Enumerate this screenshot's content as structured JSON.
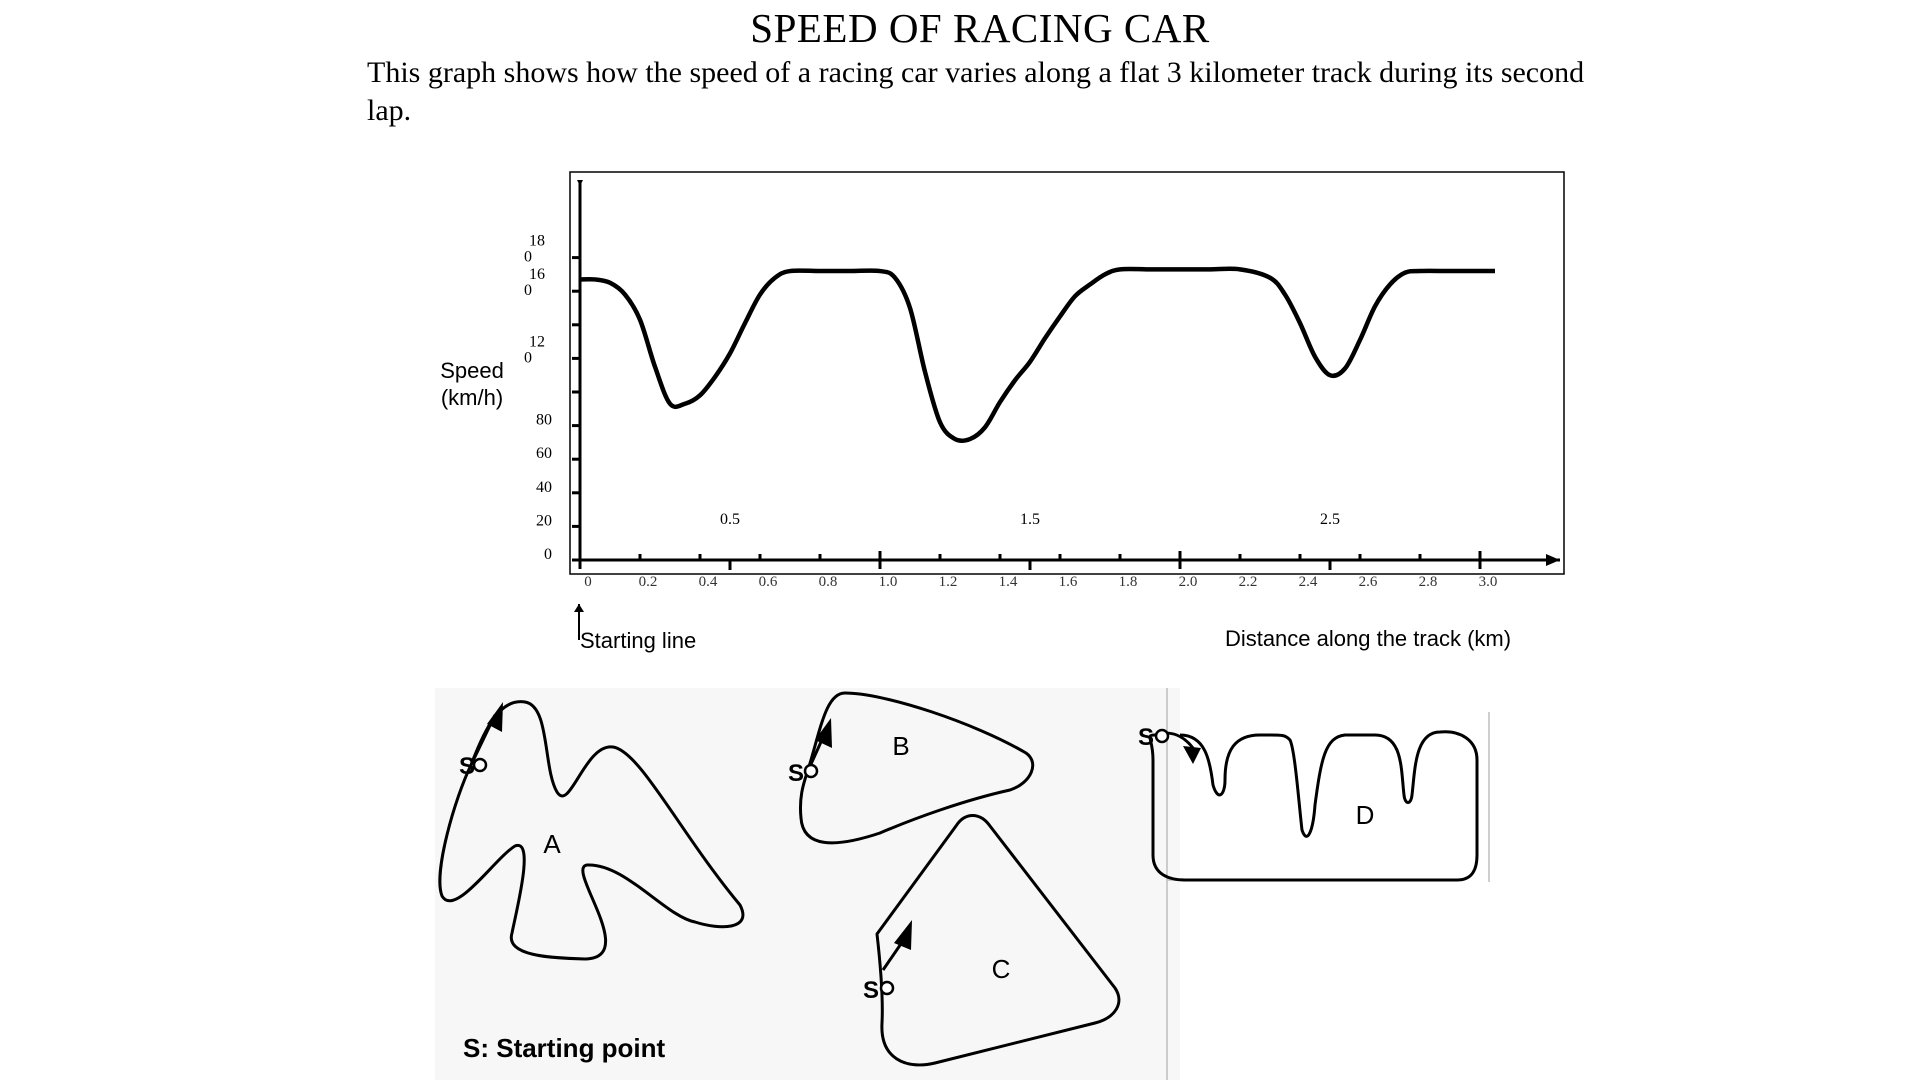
{
  "page": {
    "title": "SPEED OF RACING CAR",
    "intro": "This graph shows how the speed of a racing car varies along a flat 3 kilometer track during its second lap."
  },
  "chart_data": {
    "type": "line",
    "title": "",
    "xlabel": "Distance along the track (km)",
    "ylabel": "Speed (km/h)",
    "xlim": [
      0,
      3.3
    ],
    "ylim": [
      0,
      210
    ],
    "x_ticks_minor": [
      "0",
      "0.2",
      "0.4",
      "0.6",
      "0.8",
      "1.0",
      "1.2",
      "1.4",
      "1.6",
      "1.8",
      "2.0",
      "2.2",
      "2.4",
      "2.6",
      "2.8",
      "3.0"
    ],
    "x_ticks_major": [
      "0.5",
      "1.5",
      "2.5"
    ],
    "y_ticks": [
      {
        "value": 0,
        "label": "0"
      },
      {
        "value": 20,
        "label": "20"
      },
      {
        "value": 40,
        "label": "40"
      },
      {
        "value": 60,
        "label": "60"
      },
      {
        "value": 80,
        "label": "80"
      },
      {
        "value": 120,
        "label": "12\n0"
      },
      {
        "value": 160,
        "label": "16\n0"
      },
      {
        "value": 180,
        "label": "18\n0"
      }
    ],
    "grid": false,
    "annotations": [
      "Starting line"
    ],
    "series": [
      {
        "x": [
          0,
          0.05,
          0.1,
          0.15,
          0.2,
          0.25,
          0.3,
          0.35,
          0.4,
          0.45,
          0.5,
          0.55,
          0.6,
          0.65,
          0.7,
          0.8,
          0.9,
          1.0,
          1.05,
          1.1,
          1.15,
          1.2,
          1.25,
          1.3,
          1.35,
          1.4,
          1.45,
          1.5,
          1.55,
          1.6,
          1.65,
          1.7,
          1.75,
          1.8,
          1.9,
          2.0,
          2.1,
          2.2,
          2.3,
          2.35,
          2.4,
          2.45,
          2.5,
          2.55,
          2.6,
          2.65,
          2.7,
          2.75,
          2.8,
          2.9,
          3.0,
          3.05
        ],
        "y": [
          167,
          167,
          165,
          158,
          143,
          115,
          93,
          93,
          98,
          109,
          123,
          141,
          158,
          168,
          172,
          172,
          172,
          172,
          168,
          150,
          112,
          82,
          72,
          72,
          79,
          94,
          107,
          118,
          132,
          145,
          157,
          164,
          170,
          173,
          173,
          173,
          173,
          173,
          168,
          158,
          141,
          121,
          110,
          114,
          131,
          151,
          164,
          171,
          172,
          172,
          172,
          172
        ]
      }
    ]
  },
  "tracks": {
    "labels": [
      "A",
      "B",
      "C",
      "D"
    ],
    "start_marker": "S",
    "legend": "S: Starting point"
  }
}
